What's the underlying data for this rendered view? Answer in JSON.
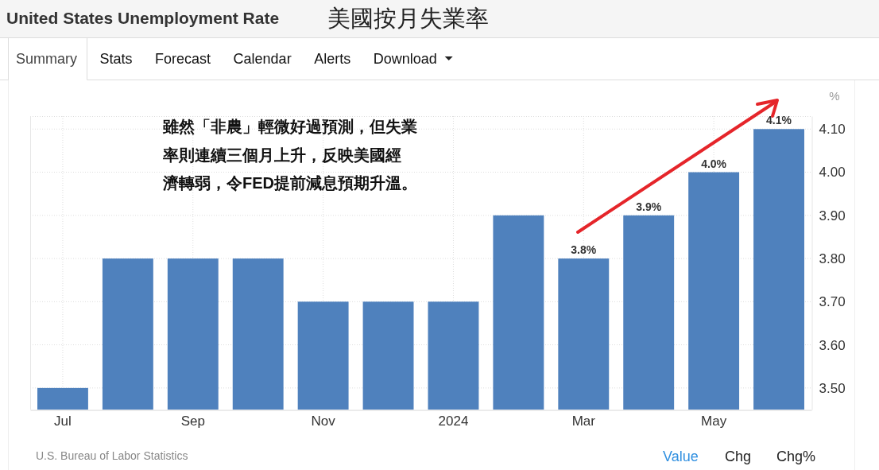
{
  "chart_data": {
    "type": "bar",
    "title": "United States Unemployment Rate",
    "subtitle": "美國按月失業率",
    "ylabel": "%",
    "categories": [
      "Jul",
      null,
      "Sep",
      null,
      "Nov",
      null,
      "2024",
      null,
      "Mar",
      null,
      "May",
      null
    ],
    "values": [
      3.5,
      3.8,
      3.8,
      3.8,
      3.7,
      3.7,
      3.7,
      3.9,
      3.8,
      3.9,
      4.0,
      4.1
    ],
    "color": "#4f81bd",
    "value_labels": [
      null,
      null,
      null,
      null,
      null,
      null,
      null,
      null,
      "3.8%",
      "3.9%",
      "4.0%",
      "4.1%"
    ],
    "ylim": [
      3.45,
      4.13
    ],
    "yticks": [
      {
        "value": 3.5,
        "label": "3.50"
      },
      {
        "value": 3.6,
        "label": "3.60"
      },
      {
        "value": 3.7,
        "label": "3.70"
      },
      {
        "value": 3.8,
        "label": "3.80"
      },
      {
        "value": 3.9,
        "label": "3.90"
      },
      {
        "value": 4,
        "label": "4.00"
      },
      {
        "value": 4.1,
        "label": "4.10"
      }
    ],
    "grid": true,
    "annotations": [
      "雖然「非農」輕微好過預測，但失業率則連續三個月上升，反映美國經濟轉弱，令FED提前減息預期升溫。",
      "U.S. Bureau of Labor Statistics",
      "Summary",
      "Stats",
      "Forecast",
      "Calendar",
      "Alerts",
      "Download",
      "Value",
      "Chg",
      "Chg%"
    ]
  }
}
